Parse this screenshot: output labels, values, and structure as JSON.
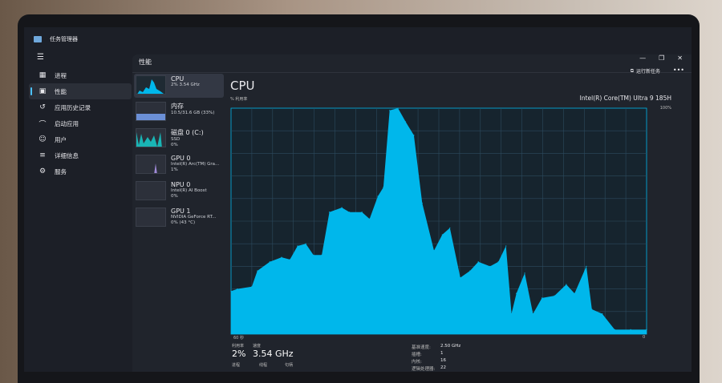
{
  "app": {
    "title": "任务管理器",
    "menu_icon": "hamburger-icon"
  },
  "nav": {
    "items": [
      {
        "label": "进程",
        "icon": "processes-icon"
      },
      {
        "label": "性能",
        "icon": "performance-icon",
        "active": true
      },
      {
        "label": "应用历史记录",
        "icon": "history-icon"
      },
      {
        "label": "启动应用",
        "icon": "startup-icon"
      },
      {
        "label": "用户",
        "icon": "users-icon"
      },
      {
        "label": "详细信息",
        "icon": "details-icon"
      },
      {
        "label": "服务",
        "icon": "services-icon"
      }
    ]
  },
  "panel": {
    "title": "性能",
    "run_task": "运行新任务",
    "more": "•••"
  },
  "devices": [
    {
      "name": "CPU",
      "line1": "2% 3.54 GHz",
      "line2": ""
    },
    {
      "name": "内存",
      "line1": "10.5/31.6 GB (33%)",
      "line2": ""
    },
    {
      "name": "磁盘 0 (C:)",
      "line1": "SSD",
      "line2": "0%"
    },
    {
      "name": "GPU 0",
      "line1": "Intel(R) Arc(TM) Gra...",
      "line2": "1%"
    },
    {
      "name": "NPU 0",
      "line1": "Intel(R) AI Boost",
      "line2": "0%"
    },
    {
      "name": "GPU 1",
      "line1": "NVIDIA GeForce RT...",
      "line2": "0% (43 °C)"
    }
  ],
  "cpu": {
    "title": "CPU",
    "util_label": "% 利用率",
    "model": "Intel(R) Core(TM) Ultra 9 185H",
    "max_label": "100%",
    "time_label": "60 秒",
    "zero_label": "0",
    "stats": {
      "util_label": "利用率",
      "util_value": "2%",
      "speed_label": "速度",
      "speed_value": "3.54 GHz",
      "proc_label": "进程",
      "thread_label": "线程",
      "handle_label": "句柄"
    },
    "specs": [
      {
        "k": "基准速度:",
        "v": "2.50 GHz"
      },
      {
        "k": "插槽:",
        "v": "1"
      },
      {
        "k": "内核:",
        "v": "16"
      },
      {
        "k": "逻辑处理器:",
        "v": "22"
      }
    ]
  },
  "colors": {
    "accent": "#00b7eb",
    "grid": "#2c4a5e"
  },
  "chart_data": {
    "type": "area",
    "xlabel": "60 秒",
    "ylabel": "% 利用率",
    "xlim": [
      60,
      0
    ],
    "ylim": [
      0,
      100
    ],
    "grid": true,
    "x": [
      60,
      59.1,
      57,
      56.2,
      54.4,
      52.7,
      51.5,
      50.4,
      49.2,
      48.1,
      46.9,
      45.8,
      44,
      42.9,
      41.1,
      40,
      38.8,
      38,
      37.1,
      35.9,
      34.8,
      33.6,
      32.4,
      30.7,
      29.5,
      28.4,
      26.9,
      25.5,
      24.3,
      22.6,
      21.4,
      20.3,
      19.5,
      18.8,
      17.6,
      16.4,
      15.1,
      13.3,
      11.6,
      10.4,
      8.7,
      7.9,
      6.4,
      4.6,
      2.3,
      0
    ],
    "y": [
      19,
      20,
      21,
      28,
      32,
      34,
      33,
      39,
      40,
      35,
      35,
      54,
      56,
      54,
      54,
      51,
      61,
      65,
      99,
      100,
      94,
      88,
      58,
      37,
      44,
      47,
      25,
      28,
      32,
      30,
      32,
      39,
      9,
      18,
      27,
      9,
      16,
      17,
      22,
      18,
      30,
      11,
      9,
      2,
      2,
      2
    ]
  }
}
